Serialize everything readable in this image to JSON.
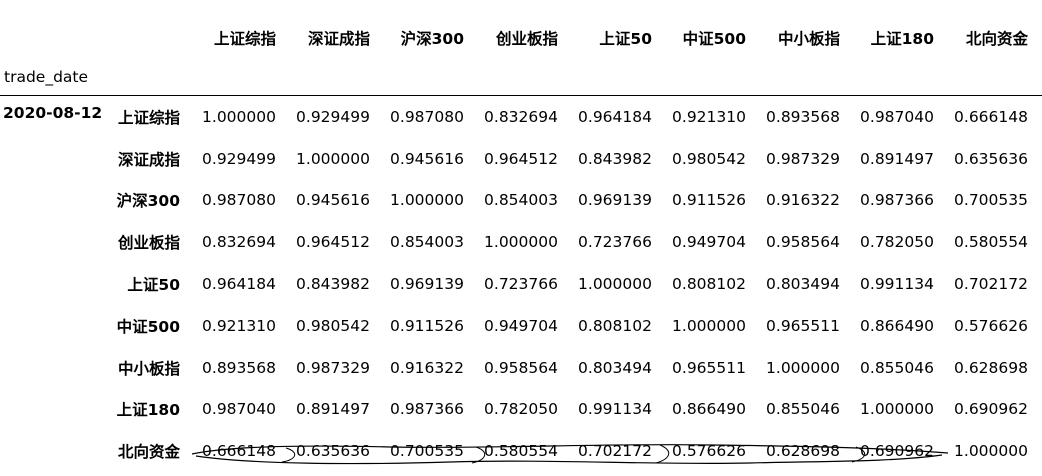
{
  "table": {
    "index_name": "trade_date",
    "date": "2020-08-12",
    "columns": [
      "上证综指",
      "深证成指",
      "沪深300",
      "创业板指",
      "上证50",
      "中证500",
      "中小板指",
      "上证180",
      "北向资金"
    ],
    "rows": [
      {
        "label": "上证综指",
        "values": [
          "1.000000",
          "0.929499",
          "0.987080",
          "0.832694",
          "0.964184",
          "0.921310",
          "0.893568",
          "0.987040",
          "0.666148"
        ]
      },
      {
        "label": "深证成指",
        "values": [
          "0.929499",
          "1.000000",
          "0.945616",
          "0.964512",
          "0.843982",
          "0.980542",
          "0.987329",
          "0.891497",
          "0.635636"
        ]
      },
      {
        "label": "沪深300",
        "values": [
          "0.987080",
          "0.945616",
          "1.000000",
          "0.854003",
          "0.969139",
          "0.911526",
          "0.916322",
          "0.987366",
          "0.700535"
        ]
      },
      {
        "label": "创业板指",
        "values": [
          "0.832694",
          "0.964512",
          "0.854003",
          "1.000000",
          "0.723766",
          "0.949704",
          "0.958564",
          "0.782050",
          "0.580554"
        ]
      },
      {
        "label": "上证50",
        "values": [
          "0.964184",
          "0.843982",
          "0.969139",
          "0.723766",
          "1.000000",
          "0.808102",
          "0.803494",
          "0.991134",
          "0.702172"
        ]
      },
      {
        "label": "中证500",
        "values": [
          "0.921310",
          "0.980542",
          "0.911526",
          "0.949704",
          "0.808102",
          "1.000000",
          "0.965511",
          "0.866490",
          "0.576626"
        ]
      },
      {
        "label": "中小板指",
        "values": [
          "0.893568",
          "0.987329",
          "0.916322",
          "0.958564",
          "0.803494",
          "0.965511",
          "1.000000",
          "0.855046",
          "0.628698"
        ]
      },
      {
        "label": "上证180",
        "values": [
          "0.987040",
          "0.891497",
          "0.987366",
          "0.782050",
          "0.991134",
          "0.866490",
          "0.855046",
          "1.000000",
          "0.690962"
        ]
      },
      {
        "label": "北向资金",
        "values": [
          "0.666148",
          "0.635636",
          "0.700535",
          "0.580554",
          "0.702172",
          "0.576626",
          "0.628698",
          "0.690962",
          "1.000000"
        ]
      }
    ]
  },
  "colors": {
    "text": "#000000",
    "background": "#ffffff",
    "annotation_stroke": "#000000"
  }
}
